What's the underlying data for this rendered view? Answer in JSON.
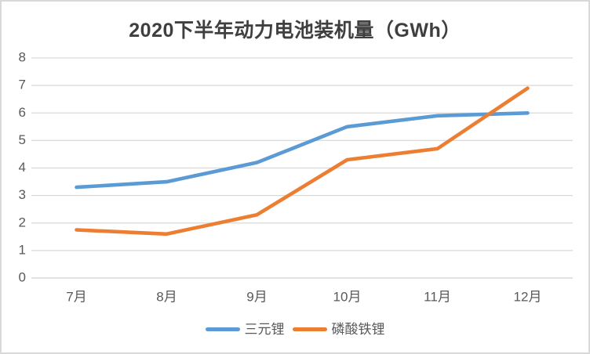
{
  "chart_data": {
    "type": "line",
    "title": "2020下半年动力电池装机量（GWh）",
    "categories": [
      "7月",
      "8月",
      "9月",
      "10月",
      "11月",
      "12月"
    ],
    "series": [
      {
        "name": "三元锂",
        "color": "#5B9BD5",
        "values": [
          3.3,
          3.5,
          4.2,
          5.5,
          5.9,
          6.0
        ]
      },
      {
        "name": "磷酸铁锂",
        "color": "#ED7D31",
        "values": [
          1.75,
          1.6,
          2.3,
          4.3,
          4.7,
          6.9
        ]
      }
    ],
    "xlabel": "",
    "ylabel": "",
    "ylim": [
      0,
      8
    ],
    "ytick_step": 1,
    "ytick_labels": [
      "0",
      "1",
      "2",
      "3",
      "4",
      "5",
      "6",
      "7",
      "8"
    ],
    "grid": true,
    "legend_position": "bottom"
  },
  "colors": {
    "background": "#FFFFFF",
    "frame_border": "#D9D9D9",
    "gridline": "#D9D9D9",
    "axis_line": "#D0D0D0",
    "axis_text": "#595959",
    "title_text": "#3F3F3F"
  }
}
